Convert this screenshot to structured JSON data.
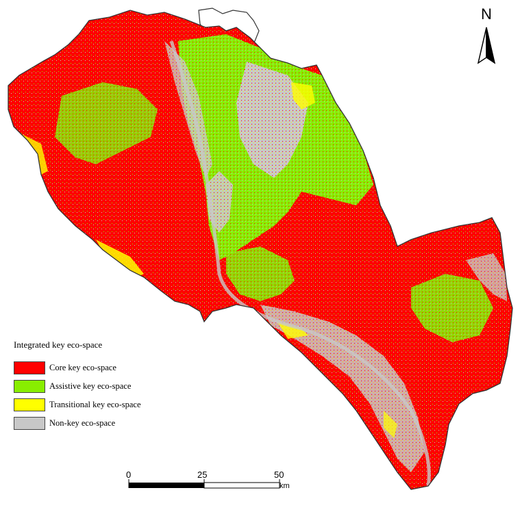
{
  "colors": {
    "core": "#ff0000",
    "assistive": "#88ee00",
    "transitional": "#ffff00",
    "nonkey": "#c8c8c8",
    "outline": "#333333"
  },
  "legend": {
    "title": "Integrated key eco-space",
    "items": [
      {
        "label": "Core key eco-space",
        "color": "#ff0000"
      },
      {
        "label": "Assistive key eco-space",
        "color": "#88ee00"
      },
      {
        "label": "Transitional key eco-space",
        "color": "#ffff00"
      },
      {
        "label": "Non-key eco-space",
        "color": "#c8c8c8"
      }
    ]
  },
  "north_arrow": {
    "label": "N",
    "icon": "north-arrow-icon"
  },
  "scale_bar": {
    "ticks": [
      "0",
      "25",
      "50"
    ],
    "unit": "km"
  }
}
